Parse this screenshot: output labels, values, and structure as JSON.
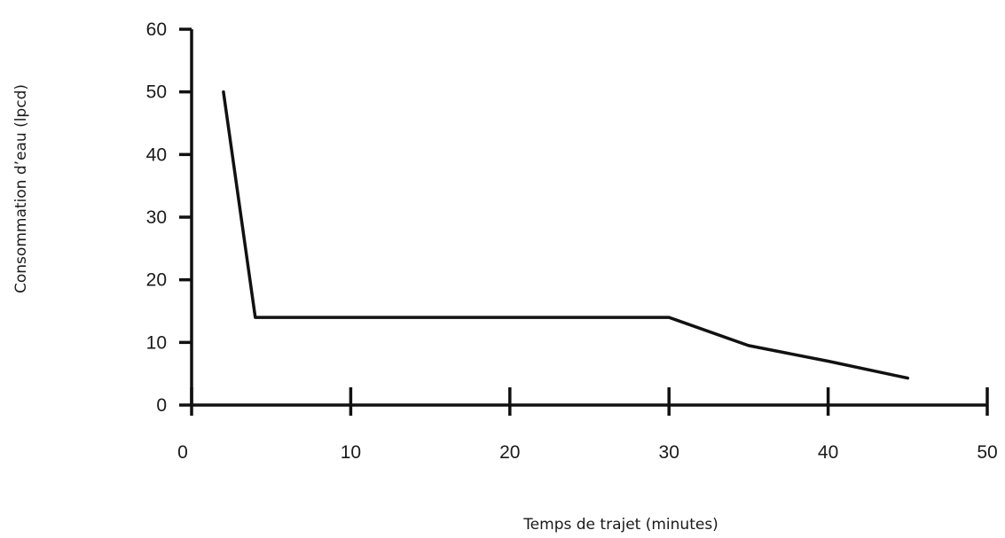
{
  "chart_data": {
    "type": "line",
    "title": "",
    "xlabel": "Temps de trajet  (minutes)",
    "ylabel": "Consommation d’eau (lpcd)",
    "xlim": [
      0,
      50
    ],
    "ylim": [
      0,
      60
    ],
    "x_ticks": [
      0,
      10,
      20,
      30,
      40,
      50
    ],
    "y_ticks": [
      0,
      10,
      20,
      30,
      40,
      50,
      60
    ],
    "x_tick_labels": [
      "0",
      "10",
      "20",
      "30",
      "40",
      "50"
    ],
    "y_tick_labels": [
      "0",
      "10",
      "20",
      "30",
      "40",
      "50",
      "60"
    ],
    "grid": false,
    "legend": "none",
    "line_color": "#111111",
    "series": [
      {
        "x": [
          2,
          4,
          30,
          35,
          40,
          45
        ],
        "y": [
          50,
          14,
          14,
          9.5,
          7,
          4.3
        ]
      }
    ]
  }
}
